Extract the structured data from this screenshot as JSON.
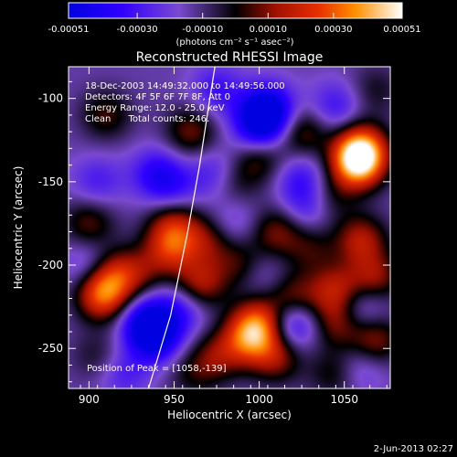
{
  "chart_data": {
    "type": "heatmap",
    "title": "Reconstructed RHESSI Image",
    "xlabel": "Heliocentric X (arcsec)",
    "ylabel": "Heliocentric Y (arcsec)",
    "xlim": [
      888,
      1077
    ],
    "ylim": [
      -274,
      -81
    ],
    "x_ticks": [
      900,
      950,
      1000,
      1050
    ],
    "y_ticks": [
      -100,
      -150,
      -200,
      -250
    ],
    "colorbar": {
      "range": [
        -0.00051,
        0.00051
      ],
      "ticks": [
        "-0.00051",
        "-0.00030",
        "-0.00010",
        "0.00010",
        "0.00030",
        "0.00051"
      ],
      "ticks_values": [
        -0.00051,
        -0.0003,
        -0.0001,
        0.0001,
        0.0003,
        0.00051
      ],
      "units": "(photons cm⁻² s⁻¹ asec⁻²)"
    },
    "annotations": [
      "18-Dec-2003 14:49:32.000 to 14:49:56.000",
      "Detectors: 4F 5F 6F 7F 8F, Att 0",
      "Energy Range: 12.0 - 25.0 keV",
      "Clean      Total counts: 246."
    ],
    "peak_label": "Position of Peak = [1058,-139]",
    "peak": [
      1058,
      -139
    ],
    "sources": [
      {
        "x": 1058,
        "y": -139,
        "value": 0.00051
      },
      {
        "x": 1060,
        "y": -130,
        "value": 0.0004
      },
      {
        "x": 908,
        "y": -218,
        "value": 0.00042
      },
      {
        "x": 915,
        "y": -205,
        "value": 0.00025
      },
      {
        "x": 910,
        "y": -110,
        "value": 0.00018
      },
      {
        "x": 900,
        "y": -175,
        "value": 0.0002
      },
      {
        "x": 960,
        "y": -120,
        "value": 0.00022
      },
      {
        "x": 985,
        "y": -150,
        "value": 0.00015
      },
      {
        "x": 1000,
        "y": -135,
        "value": 0.0002
      },
      {
        "x": 1025,
        "y": -120,
        "value": 0.00022
      },
      {
        "x": 1040,
        "y": -160,
        "value": 0.00018
      },
      {
        "x": 950,
        "y": -175,
        "value": 0.00025
      },
      {
        "x": 948,
        "y": -190,
        "value": 0.0003
      },
      {
        "x": 970,
        "y": -185,
        "value": 0.0002
      },
      {
        "x": 990,
        "y": -200,
        "value": 0.0002
      },
      {
        "x": 1010,
        "y": -180,
        "value": 0.00022
      },
      {
        "x": 1030,
        "y": -190,
        "value": 0.00015
      },
      {
        "x": 1060,
        "y": -185,
        "value": 0.00028
      },
      {
        "x": 1068,
        "y": -208,
        "value": 0.00025
      },
      {
        "x": 1045,
        "y": -215,
        "value": 0.00028
      },
      {
        "x": 1020,
        "y": -220,
        "value": 0.00024
      },
      {
        "x": 965,
        "y": -212,
        "value": 0.0003
      },
      {
        "x": 930,
        "y": -205,
        "value": 0.00015
      },
      {
        "x": 1000,
        "y": -235,
        "value": 0.00038
      },
      {
        "x": 993,
        "y": -245,
        "value": 0.0003
      },
      {
        "x": 1010,
        "y": -255,
        "value": 0.00025
      },
      {
        "x": 1045,
        "y": -235,
        "value": 0.00022
      },
      {
        "x": 1068,
        "y": -245,
        "value": 0.00025
      },
      {
        "x": 975,
        "y": -255,
        "value": 0.0002
      },
      {
        "x": 905,
        "y": -255,
        "value": 0.00012
      },
      {
        "x": 1045,
        "y": -265,
        "value": 0.00018
      },
      {
        "x": 960,
        "y": -265,
        "value": 0.00012
      },
      {
        "x": 1068,
        "y": -95,
        "value": 0.00012
      },
      {
        "x": 1005,
        "y": -107,
        "value": -0.00042
      },
      {
        "x": 1000,
        "y": -118,
        "value": -0.0003
      },
      {
        "x": 935,
        "y": -235,
        "value": -0.0004
      },
      {
        "x": 940,
        "y": -245,
        "value": -0.00025
      },
      {
        "x": 1020,
        "y": -235,
        "value": -0.0003
      },
      {
        "x": 940,
        "y": -145,
        "value": -0.00022
      },
      {
        "x": 975,
        "y": -95,
        "value": -0.00018
      },
      {
        "x": 1045,
        "y": -105,
        "value": -0.00018
      },
      {
        "x": 975,
        "y": -145,
        "value": -0.00018
      },
      {
        "x": 1025,
        "y": -148,
        "value": -0.00018
      },
      {
        "x": 1030,
        "y": -165,
        "value": -0.0002
      },
      {
        "x": 900,
        "y": -200,
        "value": -0.00015
      },
      {
        "x": 955,
        "y": -225,
        "value": -0.0002
      },
      {
        "x": 1060,
        "y": -225,
        "value": -0.00018
      },
      {
        "x": 1058,
        "y": -262,
        "value": -0.00015
      },
      {
        "x": 905,
        "y": -150,
        "value": -0.00015
      },
      {
        "x": 920,
        "y": -265,
        "value": -0.00015
      },
      {
        "x": 985,
        "y": -175,
        "value": -0.00012
      },
      {
        "x": 950,
        "y": -155,
        "value": -0.00015
      },
      {
        "x": 1000,
        "y": -205,
        "value": -0.00012
      }
    ],
    "limb_curve": [
      [
        935,
        -274
      ],
      [
        948,
        -230
      ],
      [
        958,
        -180
      ],
      [
        965,
        -140
      ],
      [
        971,
        -100
      ],
      [
        974,
        -81
      ]
    ]
  },
  "footer": {
    "date": "2-Jun-2013 02:27"
  }
}
